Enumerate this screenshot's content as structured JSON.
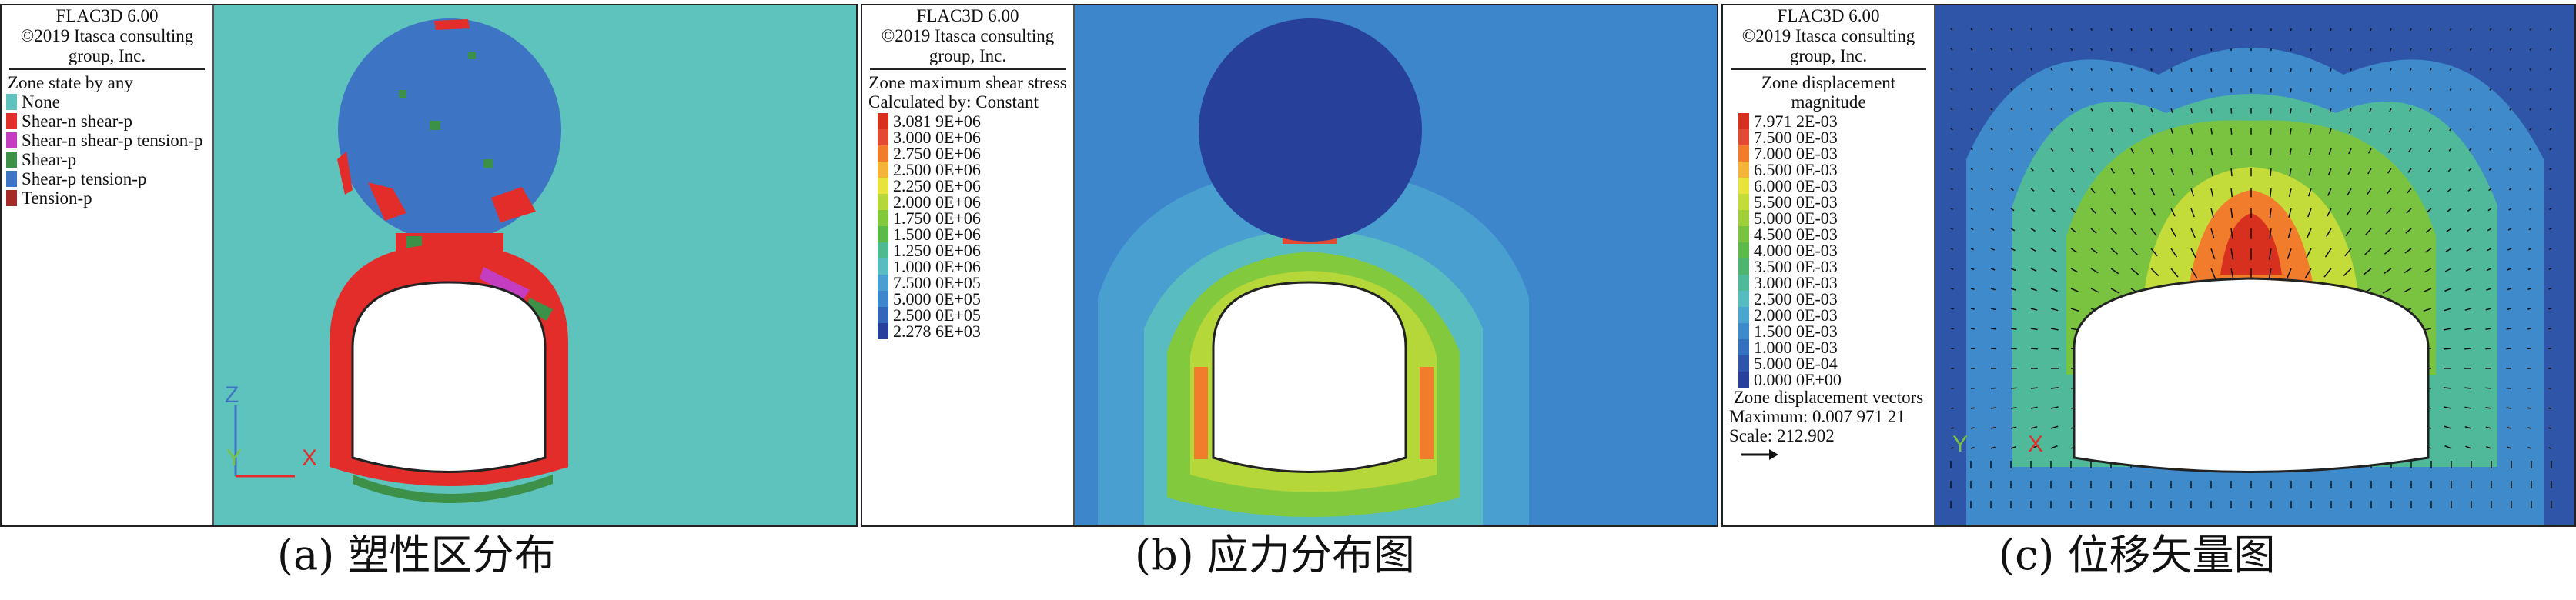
{
  "header": {
    "line1": "FLAC3D 6.00",
    "line2": "©2019 Itasca consulting",
    "line3": "group, Inc."
  },
  "panel_a": {
    "title": "Zone state by any",
    "caption": "(a) 塑性区分布",
    "states": [
      {
        "label": "None",
        "color": "#5ec2bd"
      },
      {
        "label": "Shear-n shear-p",
        "color": "#e32d2b"
      },
      {
        "label": "Shear-n shear-p tension-p",
        "color": "#c43cc0"
      },
      {
        "label": "Shear-p",
        "color": "#3c9048"
      },
      {
        "label": "Shear-p tension-p",
        "color": "#3e74c4"
      },
      {
        "label": "Tension-p",
        "color": "#a52a2a"
      }
    ],
    "axes": {
      "z": "Z",
      "y": "Y",
      "x": "X"
    }
  },
  "panel_b": {
    "title": "Zone maximum shear stress",
    "calc": "Calculated by: Constant",
    "caption": "(b) 应力分布图",
    "scale": [
      {
        "label": "3.081 9E+06",
        "color": "#d7301f"
      },
      {
        "label": "3.000 0E+06",
        "color": "#e34a33"
      },
      {
        "label": "2.750 0E+06",
        "color": "#f07c2c"
      },
      {
        "label": "2.500 0E+06",
        "color": "#f4b43a"
      },
      {
        "label": "2.250 0E+06",
        "color": "#e8e23c"
      },
      {
        "label": "2.000 0E+06",
        "color": "#b5d739"
      },
      {
        "label": "1.750 0E+06",
        "color": "#83c93e"
      },
      {
        "label": "1.500 0E+06",
        "color": "#5cba4a"
      },
      {
        "label": "1.250 0E+06",
        "color": "#4fb98f"
      },
      {
        "label": "1.000 0E+06",
        "color": "#58bcc0"
      },
      {
        "label": "7.500 0E+05",
        "color": "#4a9fd1"
      },
      {
        "label": "5.000 0E+05",
        "color": "#3e86cc"
      },
      {
        "label": "2.500 0E+05",
        "color": "#3366b8"
      },
      {
        "label": "2.278 6E+03",
        "color": "#27409a"
      }
    ]
  },
  "panel_c": {
    "title": "Zone displacement magnitude",
    "caption": "(c) 位移矢量图",
    "scale": [
      {
        "label": "7.971 2E-03",
        "color": "#d7301f"
      },
      {
        "label": "7.500 0E-03",
        "color": "#e34a33"
      },
      {
        "label": "7.000 0E-03",
        "color": "#f07c2c"
      },
      {
        "label": "6.500 0E-03",
        "color": "#f4b43a"
      },
      {
        "label": "6.000 0E-03",
        "color": "#e8e23c"
      },
      {
        "label": "5.500 0E-03",
        "color": "#c4dc3a"
      },
      {
        "label": "5.000 0E-03",
        "color": "#9fd03c"
      },
      {
        "label": "4.500 0E-03",
        "color": "#7ac341"
      },
      {
        "label": "4.000 0E-03",
        "color": "#5cba4a"
      },
      {
        "label": "3.500 0E-03",
        "color": "#4fb56e"
      },
      {
        "label": "3.000 0E-03",
        "color": "#4fb99a"
      },
      {
        "label": "2.500 0E-03",
        "color": "#56bcc0"
      },
      {
        "label": "2.000 0E-03",
        "color": "#4aa6d0"
      },
      {
        "label": "1.500 0E-03",
        "color": "#3e8acb"
      },
      {
        "label": "1.000 0E-03",
        "color": "#3370bd"
      },
      {
        "label": "5.000 0E-04",
        "color": "#2e55a8"
      },
      {
        "label": "0.000 0E+00",
        "color": "#27409a"
      }
    ],
    "vectors_title": "Zone displacement vectors",
    "maximum": "Maximum: 0.007 971 21",
    "scale_text": "Scale: 212.902",
    "axes": {
      "y": "Y",
      "x": "X"
    }
  }
}
